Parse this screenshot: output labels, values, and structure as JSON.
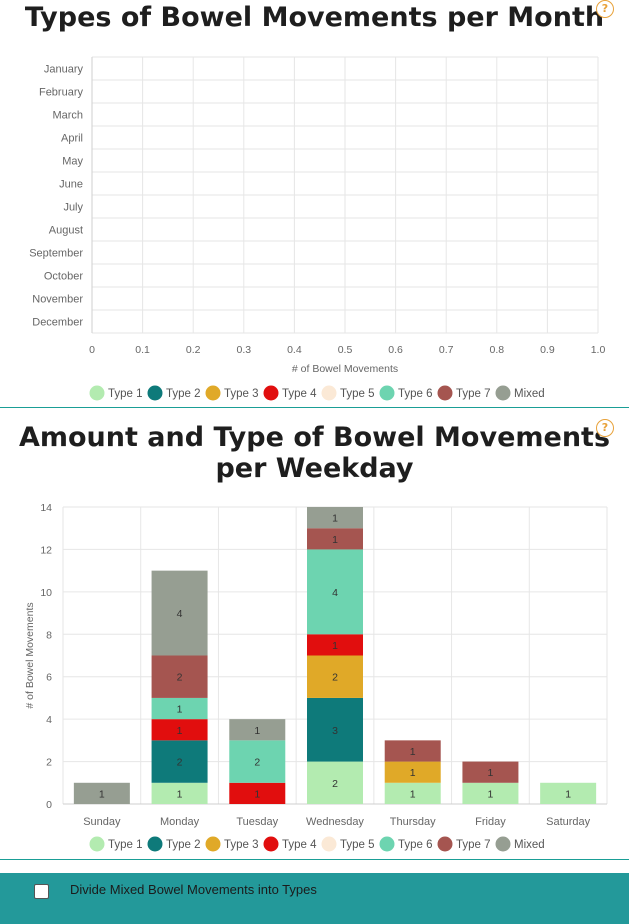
{
  "chart_data": [
    {
      "type": "bar",
      "orientation": "horizontal",
      "title": "Types of Bowel Movements per Month",
      "categories": [
        "January",
        "February",
        "March",
        "April",
        "May",
        "June",
        "July",
        "August",
        "September",
        "October",
        "November",
        "December"
      ],
      "xlabel": "# of Bowel Movements",
      "ylabel": "",
      "xlim": [
        0,
        1.0
      ],
      "x_ticks": [
        "0",
        "0.1",
        "0.2",
        "0.3",
        "0.4",
        "0.5",
        "0.6",
        "0.7",
        "0.8",
        "0.9",
        "1.0"
      ],
      "series": [],
      "legend": [
        "Type 1",
        "Type 2",
        "Type 3",
        "Type 4",
        "Type 5",
        "Type 6",
        "Type 7",
        "Mixed"
      ],
      "legend_position": "bottom",
      "grid": true
    },
    {
      "type": "bar",
      "stacked": true,
      "title": "Amount and Type of Bowel Movements per Weekday",
      "categories": [
        "Sunday",
        "Monday",
        "Tuesday",
        "Wednesday",
        "Thursday",
        "Friday",
        "Saturday"
      ],
      "xlabel": "",
      "ylabel": "# of Bowel Movements",
      "ylim": [
        0,
        14
      ],
      "y_ticks": [
        "0",
        "2",
        "4",
        "6",
        "8",
        "10",
        "12",
        "14"
      ],
      "series": [
        {
          "name": "Type 1",
          "values": [
            0,
            1,
            0,
            2,
            1,
            1,
            1
          ]
        },
        {
          "name": "Type 2",
          "values": [
            0,
            2,
            0,
            3,
            0,
            0,
            0
          ]
        },
        {
          "name": "Type 3",
          "values": [
            0,
            0,
            0,
            2,
            1,
            0,
            0
          ]
        },
        {
          "name": "Type 4",
          "values": [
            0,
            1,
            1,
            1,
            0,
            0,
            0
          ]
        },
        {
          "name": "Type 5",
          "values": [
            0,
            0,
            0,
            0,
            0,
            0,
            0
          ]
        },
        {
          "name": "Type 6",
          "values": [
            0,
            1,
            2,
            4,
            0,
            0,
            0
          ]
        },
        {
          "name": "Type 7",
          "values": [
            0,
            2,
            0,
            1,
            1,
            1,
            0
          ]
        },
        {
          "name": "Mixed",
          "values": [
            1,
            4,
            1,
            1,
            0,
            0,
            0
          ]
        }
      ],
      "legend": [
        "Type 1",
        "Type 2",
        "Type 3",
        "Type 4",
        "Type 5",
        "Type 6",
        "Type 7",
        "Mixed"
      ],
      "legend_position": "bottom",
      "grid": true
    }
  ],
  "colors": {
    "Type 1": "#b3ebb0",
    "Type 2": "#0e7a7a",
    "Type 3": "#e0a928",
    "Type 4": "#e10e0e",
    "Type 5": "#fbe9d6",
    "Type 6": "#6dd4b0",
    "Type 7": "#a55550",
    "Mixed": "#969e92",
    "divider": "#1a9e96",
    "footer": "#23999a",
    "help": "#e8a23a"
  },
  "chart1": {
    "title": "Types of Bowel Movements per Month",
    "help": "?"
  },
  "chart2": {
    "title_line1": "Amount and Type of Bowel Movements",
    "title_line2": "per Weekday",
    "help": "?"
  },
  "footer": {
    "checkbox_label": "Divide Mixed Bowel Movements into Types",
    "checked": false
  }
}
